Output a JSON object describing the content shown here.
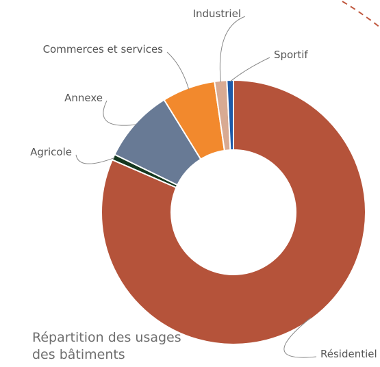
{
  "chart_data": {
    "type": "donut",
    "title": "Répartition des usages des bâtiments",
    "categories": [
      "Résidentiel",
      "Agricole",
      "Annexe",
      "Commerces et services",
      "Industriel",
      "Sportif"
    ],
    "values": [
      81.5,
      0.7,
      9,
      6.5,
      1.5,
      0.8
    ],
    "colors": [
      "#b5533a",
      "#15381f",
      "#687a95",
      "#f2892d",
      "#d8aa92",
      "#1d5aa8"
    ]
  }
}
